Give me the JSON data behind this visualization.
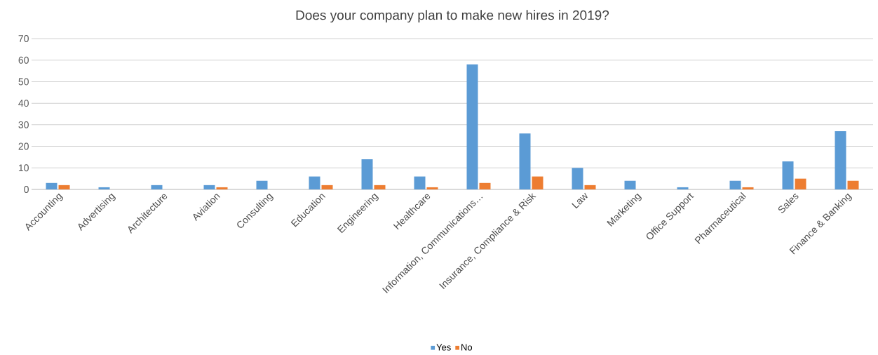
{
  "chart_data": {
    "type": "bar",
    "title": "Does your company plan to make new hires in 2019?",
    "categories": [
      "Accounting",
      "Advertising",
      "Architecture",
      "Aviation",
      "Consulting",
      "Education",
      "Engineering",
      "Healthcare",
      "Information, Communications…",
      "Insurance, Compliance & Risk",
      "Law",
      "Marketing",
      "Office Support",
      "Pharmaceutical",
      "Sales",
      "Finance & Banking"
    ],
    "series": [
      {
        "name": "Yes",
        "color": "#5b9bd5",
        "values": [
          3,
          1,
          2,
          2,
          4,
          6,
          14,
          6,
          58,
          26,
          10,
          4,
          1,
          4,
          13,
          27
        ]
      },
      {
        "name": "No",
        "color": "#ed7d31",
        "values": [
          2,
          0,
          0,
          1,
          0,
          2,
          2,
          1,
          3,
          6,
          2,
          0,
          0,
          1,
          5,
          4
        ]
      }
    ],
    "ylim": [
      0,
      70
    ],
    "yticks": [
      0,
      10,
      20,
      30,
      40,
      50,
      60,
      70
    ],
    "grid": "y",
    "legend": "bottom"
  }
}
